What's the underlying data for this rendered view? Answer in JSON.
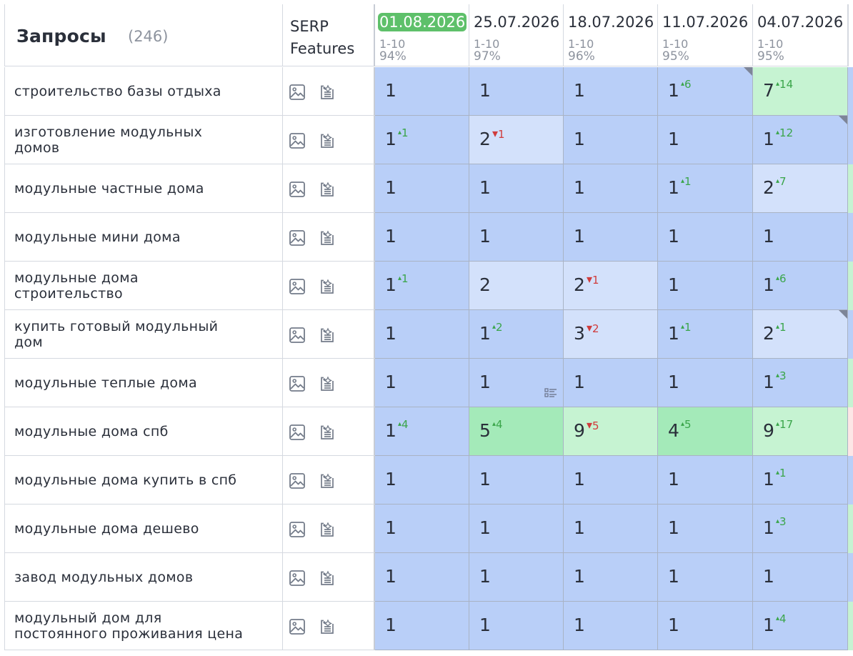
{
  "header": {
    "title": "Запросы",
    "count": "(246)",
    "serp_label": "SERP\nFeatures",
    "dates": [
      {
        "date": "01.08.2026",
        "range": "1-10",
        "pct": "94%",
        "active": true
      },
      {
        "date": "25.07.2026",
        "range": "1-10",
        "pct": "97%",
        "active": false
      },
      {
        "date": "18.07.2026",
        "range": "1-10",
        "pct": "96%",
        "active": false
      },
      {
        "date": "11.07.2026",
        "range": "1-10",
        "pct": "95%",
        "active": false
      },
      {
        "date": "04.07.2026",
        "range": "1-10",
        "pct": "95%",
        "active": false
      }
    ]
  },
  "icons": {
    "image": "image-icon",
    "ai": "ai-sparkle-icon",
    "snippet": "snippet-list-icon",
    "marker": "corner-marker"
  },
  "colors": {
    "blue": "#b9cff8",
    "light_blue": "#d3e1fb",
    "green": "#a4eab9",
    "light_green": "#c6f3d2",
    "active_date": "#5ec06a",
    "delta_up": "#3aa54a",
    "delta_down": "#d03c3c"
  },
  "rows": [
    {
      "query": "строительство базы отдыха",
      "cells": [
        {
          "pos": "1",
          "delta": "",
          "dir": "",
          "bg": "blue"
        },
        {
          "pos": "1",
          "delta": "",
          "dir": "",
          "bg": "blue"
        },
        {
          "pos": "1",
          "delta": "",
          "dir": "",
          "bg": "blue"
        },
        {
          "pos": "1",
          "delta": "6",
          "dir": "up",
          "bg": "blue",
          "corner": true
        },
        {
          "pos": "7",
          "delta": "14",
          "dir": "up",
          "bg": "lgreen"
        }
      ],
      "edge": "blue"
    },
    {
      "query": "изготовление модульных домов",
      "cells": [
        {
          "pos": "1",
          "delta": "1",
          "dir": "up",
          "bg": "blue"
        },
        {
          "pos": "2",
          "delta": "1",
          "dir": "down",
          "bg": "light"
        },
        {
          "pos": "1",
          "delta": "",
          "dir": "",
          "bg": "blue"
        },
        {
          "pos": "1",
          "delta": "",
          "dir": "",
          "bg": "blue"
        },
        {
          "pos": "1",
          "delta": "12",
          "dir": "up",
          "bg": "blue",
          "corner": true
        }
      ],
      "edge": "blue"
    },
    {
      "query": "модульные частные дома",
      "cells": [
        {
          "pos": "1",
          "delta": "",
          "dir": "",
          "bg": "blue"
        },
        {
          "pos": "1",
          "delta": "",
          "dir": "",
          "bg": "blue"
        },
        {
          "pos": "1",
          "delta": "",
          "dir": "",
          "bg": "blue"
        },
        {
          "pos": "1",
          "delta": "1",
          "dir": "up",
          "bg": "blue"
        },
        {
          "pos": "2",
          "delta": "7",
          "dir": "up",
          "bg": "light"
        }
      ],
      "edge": "green"
    },
    {
      "query": "модульные мини дома",
      "cells": [
        {
          "pos": "1",
          "delta": "",
          "dir": "",
          "bg": "blue"
        },
        {
          "pos": "1",
          "delta": "",
          "dir": "",
          "bg": "blue"
        },
        {
          "pos": "1",
          "delta": "",
          "dir": "",
          "bg": "blue"
        },
        {
          "pos": "1",
          "delta": "",
          "dir": "",
          "bg": "blue"
        },
        {
          "pos": "1",
          "delta": "",
          "dir": "",
          "bg": "blue"
        }
      ],
      "edge": "blue"
    },
    {
      "query": "модульные дома строительство",
      "cells": [
        {
          "pos": "1",
          "delta": "1",
          "dir": "up",
          "bg": "blue"
        },
        {
          "pos": "2",
          "delta": "",
          "dir": "",
          "bg": "light"
        },
        {
          "pos": "2",
          "delta": "1",
          "dir": "down",
          "bg": "light"
        },
        {
          "pos": "1",
          "delta": "",
          "dir": "",
          "bg": "blue"
        },
        {
          "pos": "1",
          "delta": "6",
          "dir": "up",
          "bg": "blue"
        }
      ],
      "edge": "green"
    },
    {
      "query": "купить готовый модульный дом",
      "cells": [
        {
          "pos": "1",
          "delta": "",
          "dir": "",
          "bg": "blue"
        },
        {
          "pos": "1",
          "delta": "2",
          "dir": "up",
          "bg": "blue"
        },
        {
          "pos": "3",
          "delta": "2",
          "dir": "down",
          "bg": "light"
        },
        {
          "pos": "1",
          "delta": "1",
          "dir": "up",
          "bg": "blue"
        },
        {
          "pos": "2",
          "delta": "1",
          "dir": "up",
          "bg": "light",
          "corner": true
        }
      ],
      "edge": "blue"
    },
    {
      "query": "модульные теплые дома",
      "cells": [
        {
          "pos": "1",
          "delta": "",
          "dir": "",
          "bg": "blue"
        },
        {
          "pos": "1",
          "delta": "",
          "dir": "",
          "bg": "blue",
          "snippet": true
        },
        {
          "pos": "1",
          "delta": "",
          "dir": "",
          "bg": "blue"
        },
        {
          "pos": "1",
          "delta": "",
          "dir": "",
          "bg": "blue"
        },
        {
          "pos": "1",
          "delta": "3",
          "dir": "up",
          "bg": "blue"
        }
      ],
      "edge": "green"
    },
    {
      "query": "модульные дома спб",
      "cells": [
        {
          "pos": "1",
          "delta": "4",
          "dir": "up",
          "bg": "blue"
        },
        {
          "pos": "5",
          "delta": "4",
          "dir": "up",
          "bg": "green"
        },
        {
          "pos": "9",
          "delta": "5",
          "dir": "down",
          "bg": "lgreen"
        },
        {
          "pos": "4",
          "delta": "5",
          "dir": "up",
          "bg": "green"
        },
        {
          "pos": "9",
          "delta": "17",
          "dir": "up",
          "bg": "lgreen"
        }
      ],
      "edge": "pink"
    },
    {
      "query": "модульные дома купить в спб",
      "cells": [
        {
          "pos": "1",
          "delta": "",
          "dir": "",
          "bg": "blue"
        },
        {
          "pos": "1",
          "delta": "",
          "dir": "",
          "bg": "blue"
        },
        {
          "pos": "1",
          "delta": "",
          "dir": "",
          "bg": "blue"
        },
        {
          "pos": "1",
          "delta": "",
          "dir": "",
          "bg": "blue"
        },
        {
          "pos": "1",
          "delta": "1",
          "dir": "up",
          "bg": "blue"
        }
      ],
      "edge": "blue"
    },
    {
      "query": "модульные дома дешево",
      "cells": [
        {
          "pos": "1",
          "delta": "",
          "dir": "",
          "bg": "blue"
        },
        {
          "pos": "1",
          "delta": "",
          "dir": "",
          "bg": "blue"
        },
        {
          "pos": "1",
          "delta": "",
          "dir": "",
          "bg": "blue"
        },
        {
          "pos": "1",
          "delta": "",
          "dir": "",
          "bg": "blue"
        },
        {
          "pos": "1",
          "delta": "3",
          "dir": "up",
          "bg": "blue"
        }
      ],
      "edge": "green"
    },
    {
      "query": "завод модульных домов",
      "cells": [
        {
          "pos": "1",
          "delta": "",
          "dir": "",
          "bg": "blue"
        },
        {
          "pos": "1",
          "delta": "",
          "dir": "",
          "bg": "blue"
        },
        {
          "pos": "1",
          "delta": "",
          "dir": "",
          "bg": "blue"
        },
        {
          "pos": "1",
          "delta": "",
          "dir": "",
          "bg": "blue"
        },
        {
          "pos": "1",
          "delta": "",
          "dir": "",
          "bg": "blue"
        }
      ],
      "edge": "blue"
    },
    {
      "query": "модульный дом для постоянного проживания цена",
      "cells": [
        {
          "pos": "1",
          "delta": "",
          "dir": "",
          "bg": "blue"
        },
        {
          "pos": "1",
          "delta": "",
          "dir": "",
          "bg": "blue"
        },
        {
          "pos": "1",
          "delta": "",
          "dir": "",
          "bg": "blue"
        },
        {
          "pos": "1",
          "delta": "",
          "dir": "",
          "bg": "blue"
        },
        {
          "pos": "1",
          "delta": "4",
          "dir": "up",
          "bg": "blue"
        }
      ],
      "edge": "green"
    }
  ]
}
